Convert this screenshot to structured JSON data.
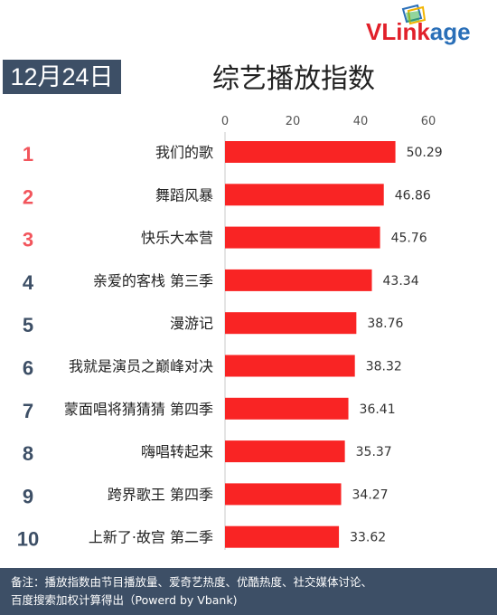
{
  "date_label": "12月24日",
  "logo": {
    "part1": "VLink",
    "part2": "age"
  },
  "colors": {
    "bar": "#f92424",
    "rank_top": "#f2555c",
    "rank_rest": "#3d4f66",
    "banner": "#3d4f66"
  },
  "footer": {
    "line1": "备注：播放指数由节目播放量、爱奇艺热度、优酷热度、社交媒体讨论、",
    "line2": "百度搜索加权计算得出（Powerd by Vbank)"
  },
  "chart_data": {
    "type": "bar",
    "orientation": "horizontal",
    "title": "综艺播放指数",
    "xlim": [
      0,
      60
    ],
    "x_ticks": [
      0,
      20,
      40,
      60
    ],
    "ranks": [
      "1",
      "2",
      "3",
      "4",
      "5",
      "6",
      "7",
      "8",
      "9",
      "10"
    ],
    "categories": [
      "我们的歌",
      "舞蹈风暴",
      "快乐大本营",
      "亲爱的客栈 第三季",
      "漫游记",
      "我就是演员之巅峰对决",
      "蒙面唱将猜猜猜 第四季",
      "嗨唱转起来",
      "跨界歌王 第四季",
      "上新了·故宫 第二季"
    ],
    "values": [
      50.29,
      46.86,
      45.76,
      43.34,
      38.76,
      38.32,
      36.41,
      35.37,
      34.27,
      33.62
    ],
    "value_labels": [
      "50.29",
      "46.86",
      "45.76",
      "43.34",
      "38.76",
      "38.32",
      "36.41",
      "35.37",
      "34.27",
      "33.62"
    ],
    "grid": false,
    "legend": "none"
  }
}
